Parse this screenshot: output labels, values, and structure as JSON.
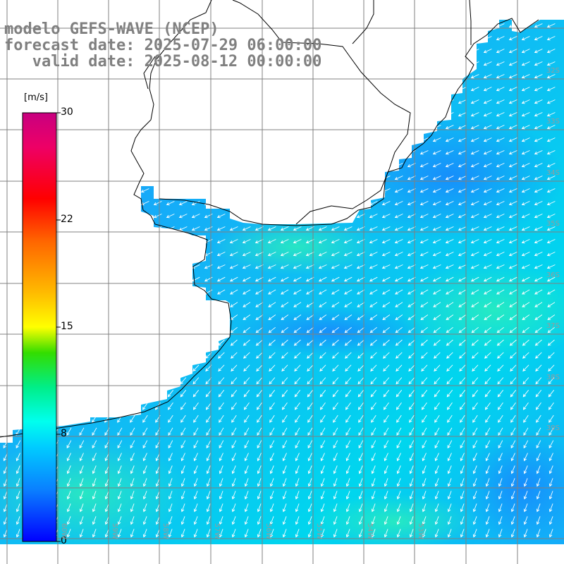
{
  "header": {
    "line1": "modelo GEFS-WAVE (NCEP)",
    "line2": "forecast date: 2025-07-29 06:00:00",
    "line3": "   valid date: 2025-08-12 00:00:00"
  },
  "colorbar": {
    "unit": "[m/s]",
    "ticks": [
      "30",
      "22",
      "15",
      "8",
      "0"
    ],
    "tick_values": [
      30,
      22,
      15,
      8,
      0
    ],
    "min": 0,
    "max": 30,
    "colors": [
      "#0000ff",
      "#0a7fff",
      "#00ccff",
      "#00ffee",
      "#00ee88",
      "#33dd00",
      "#aaee00",
      "#ffff00",
      "#ffaa00",
      "#ff5500",
      "#ff0000",
      "#ee0066",
      "#cc0077"
    ]
  },
  "lat_labels": [
    "32S",
    "33S",
    "34S",
    "35S",
    "36S",
    "37S",
    "38S",
    "39S"
  ],
  "lon_labels": [
    "60W",
    "59W",
    "58W",
    "57W",
    "56W",
    "55W",
    "54W",
    "53W"
  ],
  "colors": {
    "land": "#ffffff",
    "ocean_dark": "#1e90ff",
    "ocean_light": "#00d8ee",
    "grid": "#808080",
    "coast": "#000000",
    "arrow": "#ffffff",
    "title": "#808080"
  }
}
